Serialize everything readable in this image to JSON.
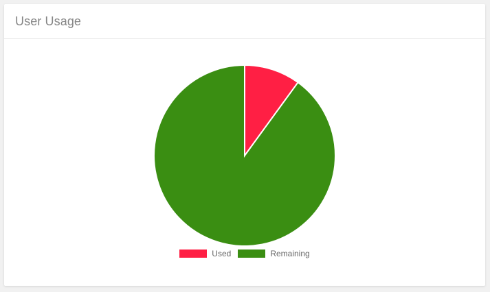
{
  "card": {
    "title": "User Usage"
  },
  "colors": {
    "used": "#ff1f44",
    "remaining": "#3a8e12",
    "slice_border": "#ffffff"
  },
  "chart_data": {
    "type": "pie",
    "categories": [
      "Used",
      "Remaining"
    ],
    "values": [
      10,
      90
    ],
    "title": "",
    "legend_position": "bottom"
  }
}
